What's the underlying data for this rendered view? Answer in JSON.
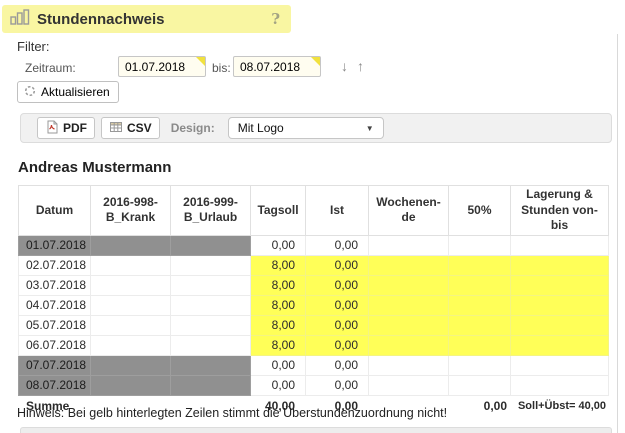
{
  "header": {
    "title": "Stundennachweis"
  },
  "icons": {
    "help": "?",
    "down_arrow": "↓",
    "up_arrow": "↑",
    "dropdown_arrow": "▼"
  },
  "filter": {
    "label": "Filter:",
    "zeitraum_label": "Zeitraum:",
    "from_value": "01.07.2018",
    "bis_label": "bis:",
    "to_value": "08.07.2018",
    "refresh_label": "Aktualisieren"
  },
  "toolbar": {
    "pdf_label": "PDF",
    "csv_label": "CSV",
    "design_label": "Design:",
    "design_value": "Mit Logo"
  },
  "employee_name": "Andreas Mustermann",
  "table": {
    "columns": [
      "Datum",
      "2016-998-\nB_Krank",
      "2016-999-\nB_Urlaub",
      "Tagsoll",
      "Ist",
      "Wochenen-\nde",
      "50%",
      "Lagerung &\nStunden von-\nbis"
    ],
    "rows": [
      {
        "style": "weekend",
        "cells": [
          "01.07.2018",
          "",
          "",
          "0,00",
          "0,00",
          "",
          "",
          ""
        ]
      },
      {
        "style": "highlight",
        "cells": [
          "02.07.2018",
          "",
          "",
          "8,00",
          "0,00",
          "",
          "",
          ""
        ]
      },
      {
        "style": "highlight",
        "cells": [
          "03.07.2018",
          "",
          "",
          "8,00",
          "0,00",
          "",
          "",
          ""
        ]
      },
      {
        "style": "highlight",
        "cells": [
          "04.07.2018",
          "",
          "",
          "8,00",
          "0,00",
          "",
          "",
          ""
        ]
      },
      {
        "style": "highlight",
        "cells": [
          "05.07.2018",
          "",
          "",
          "8,00",
          "0,00",
          "",
          "",
          ""
        ]
      },
      {
        "style": "highlight",
        "cells": [
          "06.07.2018",
          "",
          "",
          "8,00",
          "0,00",
          "",
          "",
          ""
        ]
      },
      {
        "style": "weekend",
        "cells": [
          "07.07.2018",
          "",
          "",
          "0,00",
          "0,00",
          "",
          "",
          ""
        ]
      },
      {
        "style": "weekend",
        "cells": [
          "08.07.2018",
          "",
          "",
          "0,00",
          "0,00",
          "",
          "",
          ""
        ]
      }
    ],
    "summary": {
      "style": "summary",
      "cells": [
        "Summe",
        "",
        "",
        "40,00",
        "0,00",
        "",
        "0,00",
        "Soll+Übst= 40,00"
      ]
    }
  },
  "hint": "Hinweis: Bei gelb hinterlegten Zeilen stimmt die Überstundenzuordnung nicht!",
  "colors": {
    "header_bg": "#f9f6a2",
    "highlight_cell": "#ffff58",
    "weekend_cell": "#909090",
    "input_bg": "#fffdf0",
    "input_corner": "#f1e13e",
    "toolbar_bg": "#f1f1f1"
  }
}
